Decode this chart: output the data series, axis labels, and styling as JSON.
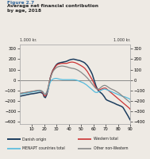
{
  "title_fig": "Figure 2.7",
  "title_main": "Average net financial contribution\nby age, 2018",
  "ylabel_left": "1.000 kr.",
  "ylabel_right": "1.000 kr.",
  "x_ticks": [
    10,
    20,
    30,
    40,
    50,
    60,
    70,
    80,
    90
  ],
  "ylim": [
    -420,
    340
  ],
  "yticks": [
    -400,
    -300,
    -200,
    -100,
    0,
    100,
    200,
    300
  ],
  "legend": [
    {
      "label": "Danish origin",
      "color": "#1c3d5e",
      "lw": 1.1
    },
    {
      "label": "Western total",
      "color": "#cc3333",
      "lw": 0.9
    },
    {
      "label": "MENAPT countries total",
      "color": "#55bbdd",
      "lw": 0.9
    },
    {
      "label": "Other non-Western",
      "color": "#888888",
      "lw": 0.9
    }
  ],
  "bg_color": "#eeeae4",
  "ages": [
    0,
    1,
    2,
    3,
    4,
    5,
    6,
    7,
    8,
    9,
    10,
    11,
    12,
    13,
    14,
    15,
    16,
    17,
    18,
    19,
    20,
    21,
    22,
    23,
    24,
    25,
    26,
    27,
    28,
    29,
    30,
    31,
    32,
    33,
    34,
    35,
    36,
    37,
    38,
    39,
    40,
    41,
    42,
    43,
    44,
    45,
    46,
    47,
    48,
    49,
    50,
    51,
    52,
    53,
    54,
    55,
    56,
    57,
    58,
    59,
    60,
    61,
    62,
    63,
    64,
    65,
    66,
    67,
    68,
    69,
    70,
    71,
    72,
    73,
    74,
    75,
    76,
    77,
    78,
    79,
    80,
    81,
    82,
    83,
    84,
    85,
    86,
    87,
    88,
    89,
    90
  ],
  "danish": [
    -155,
    -153,
    -150,
    -148,
    -145,
    -143,
    -140,
    -138,
    -135,
    -133,
    -131,
    -130,
    -128,
    -126,
    -124,
    -121,
    -119,
    -118,
    -122,
    -130,
    -160,
    -168,
    -142,
    -100,
    -42,
    22,
    62,
    92,
    112,
    132,
    148,
    158,
    163,
    166,
    169,
    171,
    174,
    176,
    179,
    184,
    190,
    194,
    197,
    199,
    200,
    197,
    194,
    191,
    189,
    186,
    181,
    176,
    171,
    163,
    151,
    139,
    121,
    101,
    80,
    55,
    18,
    -18,
    -55,
    -82,
    -102,
    -113,
    -122,
    -132,
    -147,
    -163,
    -183,
    -192,
    -197,
    -202,
    -207,
    -212,
    -217,
    -222,
    -228,
    -234,
    -238,
    -243,
    -248,
    -253,
    -263,
    -283,
    -303,
    -323,
    -343,
    -365,
    -385
  ],
  "western": [
    -130,
    -128,
    -126,
    -124,
    -122,
    -120,
    -118,
    -116,
    -114,
    -112,
    -110,
    -108,
    -106,
    -104,
    -102,
    -100,
    -100,
    -102,
    -112,
    -122,
    -148,
    -152,
    -128,
    -88,
    -32,
    26,
    62,
    90,
    110,
    127,
    142,
    150,
    154,
    157,
    159,
    160,
    160,
    160,
    160,
    162,
    167,
    170,
    172,
    172,
    170,
    167,
    162,
    157,
    150,
    144,
    137,
    130,
    122,
    112,
    97,
    82,
    62,
    42,
    22,
    2,
    -23,
    -48,
    -73,
    -88,
    -93,
    -93,
    -88,
    -83,
    -78,
    -76,
    -78,
    -88,
    -98,
    -108,
    -118,
    -128,
    -138,
    -148,
    -158,
    -168,
    -178,
    -188,
    -198,
    -208,
    -218,
    -228,
    -238,
    -248,
    -258,
    -268,
    -283
  ],
  "menapt": [
    -135,
    -133,
    -131,
    -129,
    -127,
    -125,
    -123,
    -121,
    -119,
    -117,
    -115,
    -113,
    -111,
    -109,
    -107,
    -105,
    -103,
    -102,
    -107,
    -112,
    -132,
    -138,
    -122,
    -92,
    -52,
    -18,
    0,
    8,
    13,
    16,
    16,
    13,
    10,
    8,
    6,
    4,
    4,
    4,
    4,
    4,
    4,
    4,
    4,
    4,
    3,
    2,
    0,
    -4,
    -8,
    -13,
    -18,
    -23,
    -28,
    -36,
    -43,
    -53,
    -63,
    -73,
    -83,
    -93,
    -103,
    -113,
    -118,
    -118,
    -113,
    -106,
    -98,
    -93,
    -88,
    -86,
    -88,
    -93,
    -98,
    -103,
    -108,
    -113,
    -118,
    -123,
    -128,
    -133,
    -138,
    -143,
    -148,
    -153,
    -157,
    -159,
    -163,
    -168,
    -173,
    -178,
    -186
  ],
  "other_nonwestern": [
    -128,
    -126,
    -124,
    -122,
    -120,
    -118,
    -116,
    -114,
    -112,
    -110,
    -108,
    -106,
    -104,
    -102,
    -100,
    -98,
    -97,
    -98,
    -103,
    -113,
    -133,
    -136,
    -116,
    -80,
    -28,
    20,
    54,
    80,
    97,
    110,
    120,
    126,
    130,
    132,
    134,
    134,
    132,
    130,
    127,
    124,
    120,
    117,
    114,
    112,
    110,
    107,
    102,
    97,
    90,
    82,
    74,
    64,
    54,
    44,
    32,
    20,
    7,
    -8,
    -23,
    -38,
    -53,
    -68,
    -80,
    -86,
    -86,
    -80,
    -70,
    -60,
    -53,
    -50,
    -53,
    -60,
    -68,
    -76,
    -83,
    -88,
    -93,
    -98,
    -106,
    -113,
    -120,
    -128,
    -138,
    -148,
    -158,
    -168,
    -178,
    -188,
    -198,
    -208,
    -218
  ]
}
